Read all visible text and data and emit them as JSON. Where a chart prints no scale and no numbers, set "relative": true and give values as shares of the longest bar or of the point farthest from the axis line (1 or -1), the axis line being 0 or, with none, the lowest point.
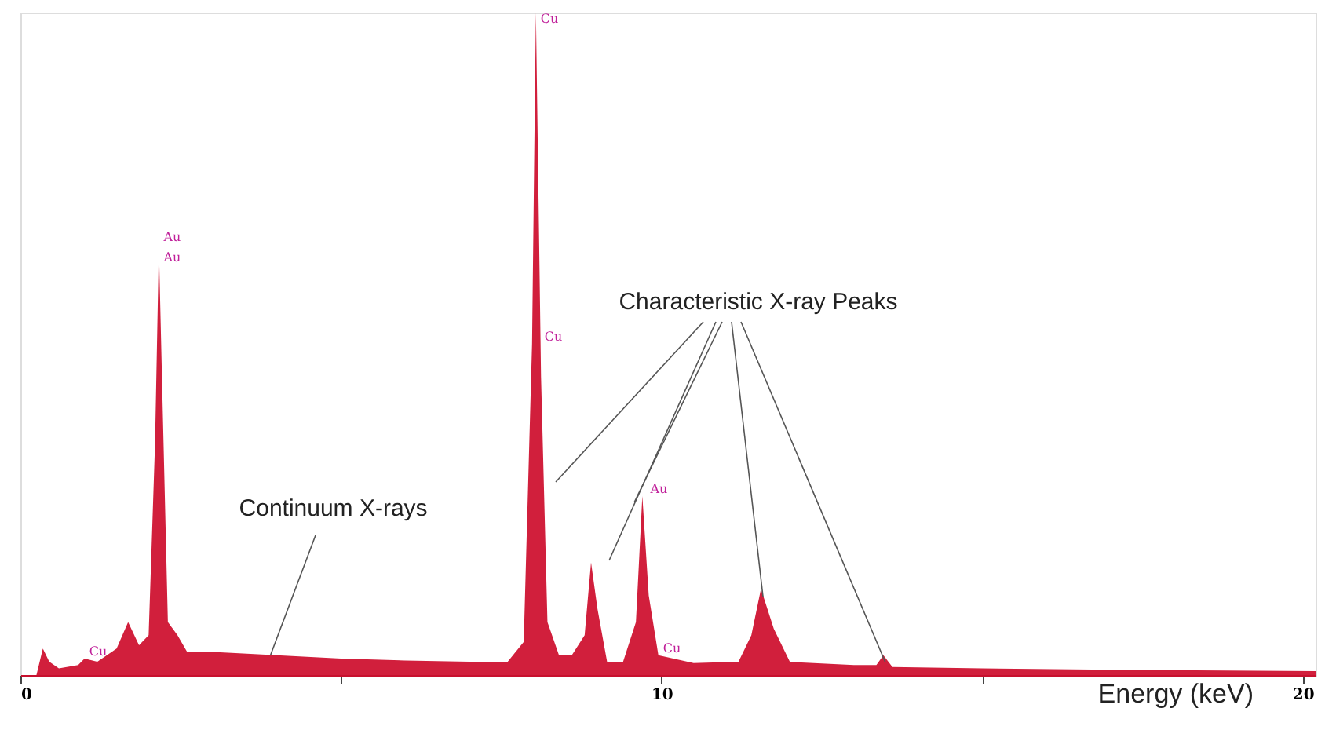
{
  "chart_data": {
    "type": "area",
    "relative": true,
    "xlabel": "Energy (keV)",
    "xlim": [
      0,
      20.2
    ],
    "xticks": [
      0,
      {
        "value": 5,
        "label": null
      },
      10,
      {
        "value": 15,
        "label": null
      },
      20
    ],
    "grid": false,
    "series": [
      {
        "color": "#d11f3c",
        "x": [
          0.0,
          0.25,
          0.35,
          0.45,
          0.6,
          0.9,
          1.0,
          1.2,
          1.5,
          1.68,
          1.85,
          2.0,
          2.1,
          2.16,
          2.22,
          2.3,
          2.45,
          2.6,
          3.0,
          4.0,
          5.0,
          6.0,
          7.0,
          7.6,
          7.85,
          7.98,
          8.04,
          8.12,
          8.22,
          8.4,
          8.6,
          8.8,
          8.9,
          9.0,
          9.15,
          9.4,
          9.6,
          9.7,
          9.8,
          9.95,
          10.5,
          11.2,
          11.4,
          11.55,
          11.75,
          12.0,
          13.0,
          13.35,
          13.46,
          13.6,
          15.0,
          17.0,
          20.2
        ],
        "values": [
          0.0,
          0.0,
          0.04,
          0.02,
          0.01,
          0.015,
          0.025,
          0.02,
          0.04,
          0.08,
          0.045,
          0.06,
          0.35,
          0.645,
          0.4,
          0.08,
          0.06,
          0.035,
          0.035,
          0.03,
          0.025,
          0.022,
          0.02,
          0.02,
          0.05,
          0.5,
          1.0,
          0.45,
          0.08,
          0.03,
          0.03,
          0.06,
          0.17,
          0.1,
          0.02,
          0.02,
          0.08,
          0.27,
          0.12,
          0.03,
          0.018,
          0.02,
          0.06,
          0.13,
          0.07,
          0.02,
          0.015,
          0.015,
          0.03,
          0.012,
          0.01,
          0.008,
          0.006
        ]
      }
    ],
    "annotations": [
      {
        "text": "Continuum X-rays",
        "x": 3.9,
        "y": 0.03
      },
      "Characteristic X-ray Peaks",
      {
        "text": "Au",
        "x": 2.16,
        "y": 0.65
      },
      {
        "text": "Au",
        "x": 2.16,
        "y": 0.62
      },
      {
        "text": "Cu",
        "x": 8.04,
        "y": 0.98
      },
      {
        "text": "Cu",
        "x": 8.1,
        "y": 0.5
      },
      {
        "text": "Au",
        "x": 9.75,
        "y": 0.27
      },
      {
        "text": "Cu",
        "x": 9.95,
        "y": 0.03
      },
      {
        "text": "Cu",
        "x": 1.0,
        "y": 0.025
      }
    ]
  }
}
